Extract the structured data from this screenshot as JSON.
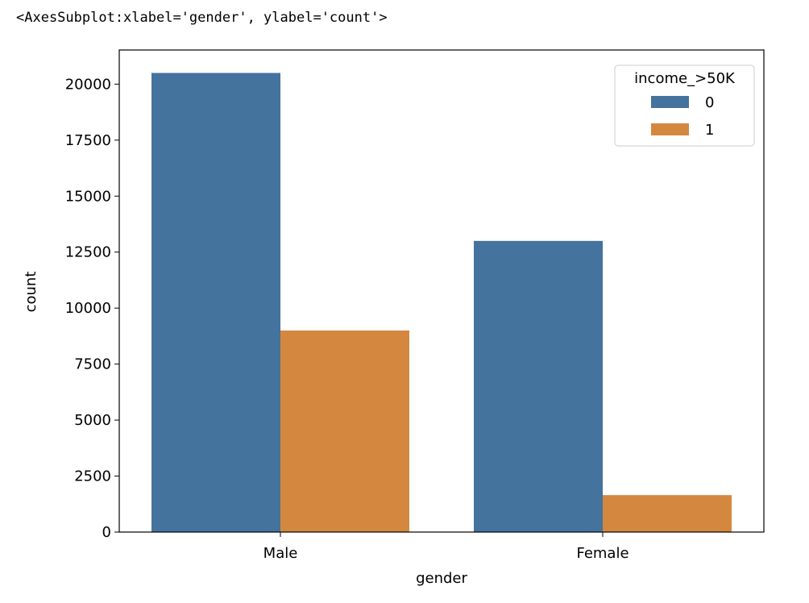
{
  "output_text": "<AxesSubplot:xlabel='gender', ylabel='count'>",
  "chart_data": {
    "type": "bar",
    "xlabel": "gender",
    "ylabel": "count",
    "categories": [
      "Male",
      "Female"
    ],
    "legend_title": "income_>50K",
    "legend": "upper right",
    "series": [
      {
        "name": "0",
        "color": "#44739d",
        "values": [
          20500,
          13000
        ]
      },
      {
        "name": "1",
        "color": "#d4883f",
        "values": [
          9000,
          1650
        ]
      }
    ],
    "ylim": [
      0,
      21525
    ],
    "yticks": [
      0,
      2500,
      5000,
      7500,
      10000,
      12500,
      15000,
      17500,
      20000
    ]
  }
}
